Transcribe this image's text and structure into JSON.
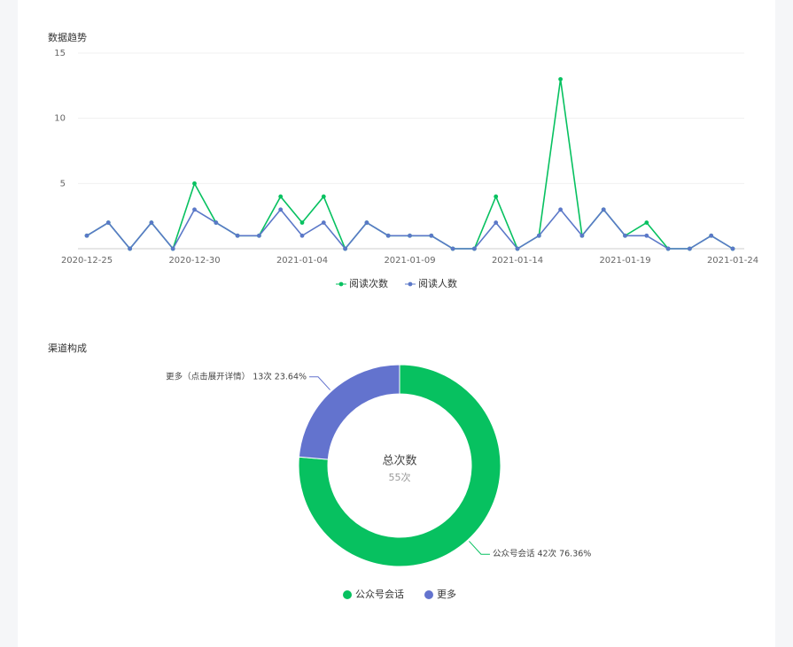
{
  "chart_data": [
    {
      "type": "line",
      "title": "数据趋势",
      "x": [
        "2020-12-25",
        "2020-12-26",
        "2020-12-27",
        "2020-12-28",
        "2020-12-29",
        "2020-12-30",
        "2020-12-31",
        "2021-01-01",
        "2021-01-02",
        "2021-01-03",
        "2021-01-04",
        "2021-01-05",
        "2021-01-06",
        "2021-01-07",
        "2021-01-08",
        "2021-01-09",
        "2021-01-10",
        "2021-01-11",
        "2021-01-12",
        "2021-01-13",
        "2021-01-14",
        "2021-01-15",
        "2021-01-16",
        "2021-01-17",
        "2021-01-18",
        "2021-01-19",
        "2021-01-20",
        "2021-01-21",
        "2021-01-22",
        "2021-01-23",
        "2021-01-24"
      ],
      "xticks": [
        "2020-12-25",
        "2020-12-30",
        "2021-01-04",
        "2021-01-09",
        "2021-01-14",
        "2021-01-19",
        "2021-01-24"
      ],
      "series": [
        {
          "name": "阅读次数",
          "color": "#07c160",
          "values": [
            1,
            2,
            0,
            2,
            0,
            5,
            2,
            1,
            1,
            4,
            2,
            4,
            0,
            2,
            1,
            1,
            1,
            0,
            0,
            4,
            0,
            1,
            13,
            1,
            3,
            1,
            2,
            0,
            0,
            1,
            0
          ]
        },
        {
          "name": "阅读人数",
          "color": "#5b78c8",
          "values": [
            1,
            2,
            0,
            2,
            0,
            3,
            2,
            1,
            1,
            3,
            1,
            2,
            0,
            2,
            1,
            1,
            1,
            0,
            0,
            2,
            0,
            1,
            3,
            1,
            3,
            1,
            1,
            0,
            0,
            1,
            0
          ]
        }
      ],
      "ylim": [
        0,
        15
      ],
      "yticks": [
        5,
        10,
        15
      ],
      "grid": true
    },
    {
      "type": "pie",
      "title": "渠道构成",
      "center_title": "总次数",
      "center_label": "55次",
      "categories": [
        "公众号会话",
        "更多"
      ],
      "values": [
        42,
        13
      ],
      "value_labels": [
        "公众号会话 42次 76.36%",
        "更多（点击展开详情） 13次 23.64%"
      ],
      "colors": [
        "#07c160",
        "#6373ce"
      ]
    }
  ]
}
